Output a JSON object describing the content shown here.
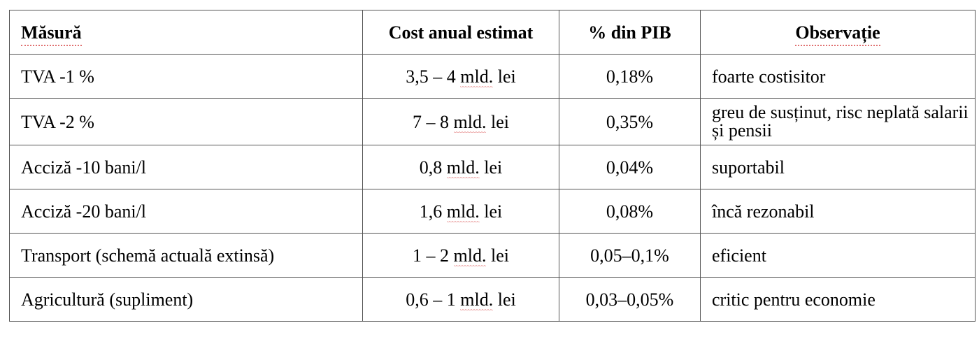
{
  "table": {
    "headers": {
      "measure": "Măsură",
      "cost": "Cost anual estimat",
      "gdp": "% din PIB",
      "note": "Observație"
    },
    "rows": [
      {
        "measure": "TVA -1 %",
        "cost_before": "3,5 – 4 ",
        "cost_unit": "mld.",
        "cost_after": " lei",
        "gdp": "0,18%",
        "note": "foarte costisitor"
      },
      {
        "measure": "TVA -2 %",
        "cost_before": "7 – 8 ",
        "cost_unit": "mld.",
        "cost_after": " lei",
        "gdp": "0,35%",
        "note": "greu de susținut, risc neplată salarii și pensii"
      },
      {
        "measure": "Acciză -10 bani/l",
        "cost_before": "0,8 ",
        "cost_unit": "mld.",
        "cost_after": " lei",
        "gdp": "0,04%",
        "note": "suportabil"
      },
      {
        "measure": "Acciză -20 bani/l",
        "cost_before": "1,6 ",
        "cost_unit": "mld.",
        "cost_after": " lei",
        "gdp": "0,08%",
        "note": "încă rezonabil"
      },
      {
        "measure": "Transport (schemă actuală extinsă)",
        "cost_before": "1 – 2 ",
        "cost_unit": "mld.",
        "cost_after": " lei",
        "gdp": "0,05–0,1%",
        "note": "eficient"
      },
      {
        "measure": "Agricultură (supliment)",
        "cost_before": "0,6 – 1 ",
        "cost_unit": "mld.",
        "cost_after": " lei",
        "gdp": "0,03–0,05%",
        "note": "critic pentru economie"
      }
    ]
  }
}
